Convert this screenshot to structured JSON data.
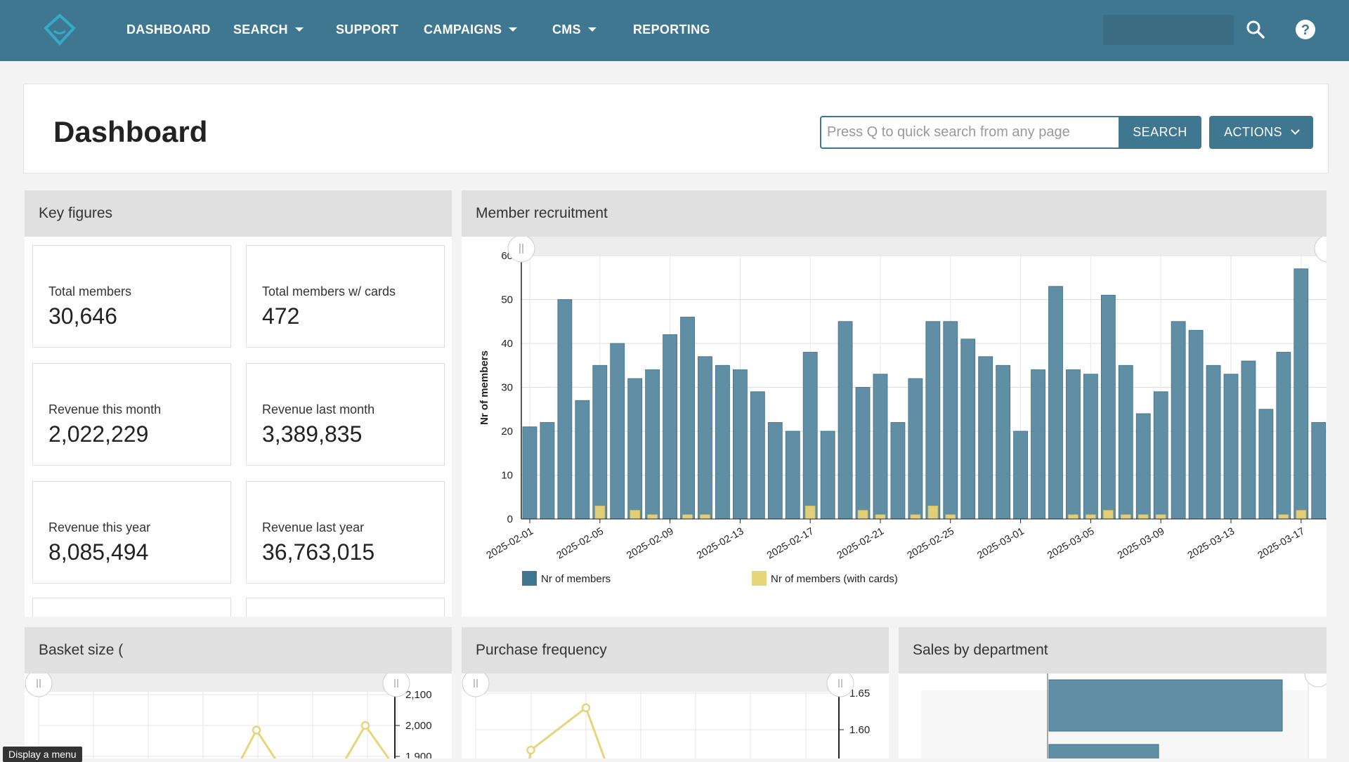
{
  "nav": {
    "items": [
      {
        "label": "DASHBOARD",
        "dropdown": false
      },
      {
        "label": "SEARCH",
        "dropdown": true
      },
      {
        "label": "SUPPORT",
        "dropdown": false
      },
      {
        "label": "CAMPAIGNS",
        "dropdown": true
      },
      {
        "label": "CMS",
        "dropdown": true
      },
      {
        "label": "REPORTING",
        "dropdown": false
      }
    ],
    "icons": [
      "logo-icon",
      "search-icon",
      "help-icon"
    ]
  },
  "header": {
    "title": "Dashboard",
    "search_placeholder": "Press Q to quick search from any page",
    "search_label": "SEARCH",
    "actions_label": "ACTIONS"
  },
  "key_figures": {
    "title": "Key figures",
    "cards": [
      {
        "label": "Total members",
        "value": "30,646"
      },
      {
        "label": "Total members w/ cards",
        "value": "472"
      },
      {
        "label": "Revenue this month",
        "value": "2,022,229"
      },
      {
        "label": "Revenue last month",
        "value": "3,389,835"
      },
      {
        "label": "Revenue this year",
        "value": "8,085,494"
      },
      {
        "label": "Revenue last year",
        "value": "36,763,015"
      }
    ]
  },
  "member_recruitment": {
    "title": "Member recruitment"
  },
  "basket_size": {
    "title": "Basket size ("
  },
  "purchase_frequency": {
    "title": "Purchase frequency"
  },
  "sales_by_department": {
    "title": "Sales by department"
  },
  "tooltip": "Display a menu",
  "colors": {
    "nav": "#3f7690",
    "bar": "#5f8ea5",
    "bar_cards": "#e0cf78",
    "line": "#e7d57a"
  },
  "chart_data": [
    {
      "type": "bar",
      "title": "Member recruitment",
      "ylabel": "Nr of members",
      "ylim": [
        0,
        60
      ],
      "yticks": [
        0,
        10,
        20,
        30,
        40,
        50,
        60
      ],
      "xtick_labels": [
        "2025-02-01",
        "2025-02-05",
        "2025-02-09",
        "2025-02-13",
        "2025-02-17",
        "2025-02-21",
        "2025-02-25",
        "2025-03-01",
        "2025-03-05",
        "2025-03-09",
        "2025-03-13",
        "2025-03-17"
      ],
      "legend_position": "bottom",
      "series": [
        {
          "name": "Nr of members",
          "values": [
            21,
            22,
            50,
            27,
            35,
            40,
            32,
            34,
            42,
            46,
            37,
            35,
            34,
            29,
            22,
            20,
            38,
            20,
            45,
            30,
            33,
            22,
            32,
            45,
            45,
            41,
            37,
            35,
            20,
            34,
            53,
            34,
            33,
            51,
            35,
            24,
            29,
            45,
            43,
            35,
            33,
            36,
            25,
            38,
            57,
            22
          ]
        },
        {
          "name": "Nr of members (with cards)",
          "values": [
            0,
            0,
            0,
            0,
            3,
            0,
            2,
            1,
            0,
            1,
            1,
            0,
            0,
            0,
            0,
            0,
            3,
            0,
            0,
            2,
            1,
            0,
            1,
            3,
            1,
            0,
            0,
            0,
            0,
            0,
            0,
            1,
            1,
            2,
            1,
            1,
            1,
            0,
            0,
            0,
            0,
            0,
            0,
            1,
            2,
            0
          ]
        }
      ]
    },
    {
      "type": "line",
      "title": "Basket size (",
      "yticks": [
        1900,
        2000,
        2100
      ],
      "ytick_labels": [
        "1,900",
        "2,000",
        "2,100"
      ],
      "points": [
        {
          "i": 4,
          "y": 1985
        },
        {
          "i": 6,
          "y": 2000
        }
      ]
    },
    {
      "type": "line",
      "title": "Purchase frequency",
      "yticks": [
        1.6,
        1.65
      ],
      "ytick_labels": [
        "1.60",
        "1.65"
      ],
      "points": [
        {
          "i": 1,
          "y": 1.572
        },
        {
          "i": 2,
          "y": 1.63
        }
      ]
    },
    {
      "type": "bar",
      "title": "Sales by department",
      "orientation": "horizontal"
    }
  ]
}
